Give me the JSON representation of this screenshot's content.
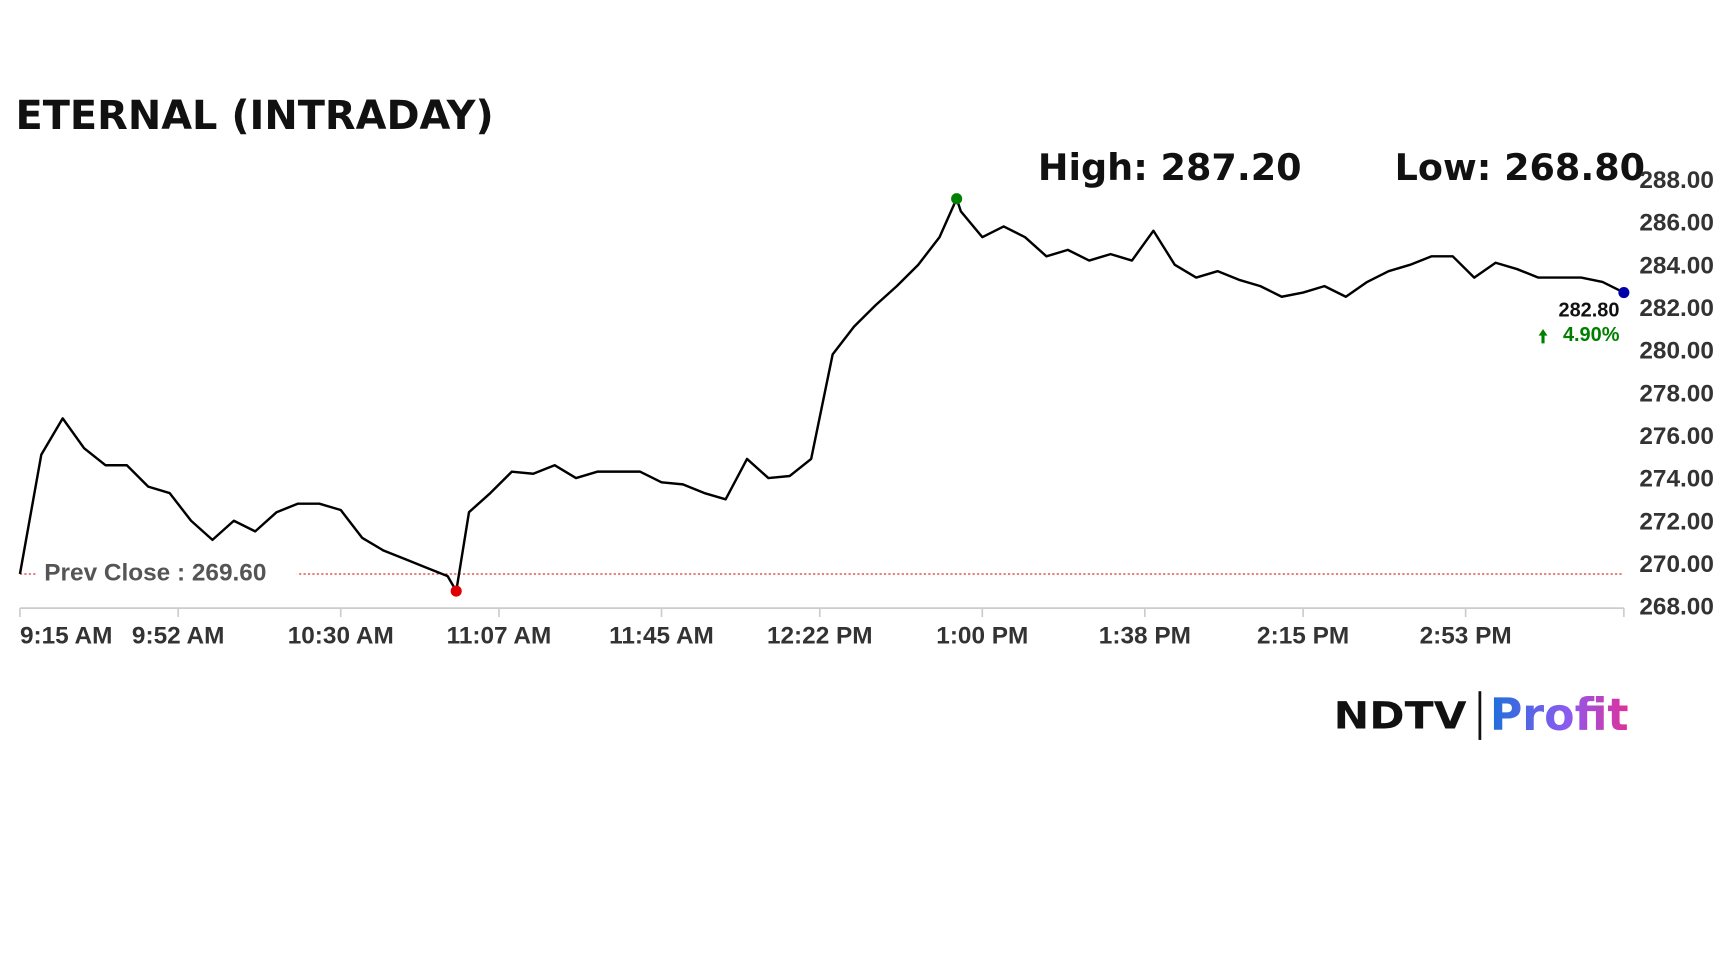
{
  "chart_data": {
    "type": "line",
    "title": "ETERNAL (INTRADAY)",
    "x": [
      "9:15 AM",
      "9:20 AM",
      "9:25 AM",
      "9:30 AM",
      "9:35 AM",
      "9:40 AM",
      "9:45 AM",
      "9:50 AM",
      "9:55 AM",
      "10:00 AM",
      "10:05 AM",
      "10:10 AM",
      "10:15 AM",
      "10:20 AM",
      "10:25 AM",
      "10:30 AM",
      "10:35 AM",
      "10:40 AM",
      "10:45 AM",
      "10:50 AM",
      "10:55 AM",
      "10:57 AM",
      "11:00 AM",
      "11:05 AM",
      "11:10 AM",
      "11:15 AM",
      "11:20 AM",
      "11:25 AM",
      "11:30 AM",
      "11:35 AM",
      "11:40 AM",
      "11:45 AM",
      "11:50 AM",
      "11:55 AM",
      "12:00 PM",
      "12:05 PM",
      "12:10 PM",
      "12:15 PM",
      "12:20 PM",
      "12:25 PM",
      "12:30 PM",
      "12:35 PM",
      "12:40 PM",
      "12:45 PM",
      "12:50 PM",
      "12:54 PM",
      "12:55 PM",
      "1:00 PM",
      "1:05 PM",
      "1:10 PM",
      "1:15 PM",
      "1:20 PM",
      "1:25 PM",
      "1:30 PM",
      "1:35 PM",
      "1:40 PM",
      "1:45 PM",
      "1:50 PM",
      "1:55 PM",
      "2:00 PM",
      "2:05 PM",
      "2:10 PM",
      "2:15 PM",
      "2:20 PM",
      "2:25 PM",
      "2:30 PM",
      "2:35 PM",
      "2:40 PM",
      "2:45 PM",
      "2:50 PM",
      "2:55 PM",
      "3:00 PM",
      "3:05 PM",
      "3:10 PM",
      "3:15 PM",
      "3:20 PM",
      "3:25 PM",
      "3:30 PM"
    ],
    "values": [
      269.6,
      275.2,
      276.9,
      275.5,
      274.7,
      274.7,
      273.7,
      273.4,
      272.1,
      271.2,
      272.1,
      271.6,
      272.5,
      272.9,
      272.9,
      272.6,
      271.3,
      270.7,
      270.3,
      269.9,
      269.5,
      268.8,
      272.5,
      273.4,
      274.4,
      274.3,
      274.7,
      274.1,
      274.4,
      274.4,
      274.4,
      273.9,
      273.8,
      273.4,
      273.1,
      275.0,
      274.1,
      274.2,
      275.0,
      279.9,
      281.2,
      282.2,
      283.1,
      284.1,
      285.4,
      287.2,
      286.6,
      285.4,
      285.9,
      285.4,
      284.5,
      284.8,
      284.3,
      284.6,
      284.3,
      285.7,
      284.1,
      283.5,
      283.8,
      283.4,
      283.1,
      282.6,
      282.8,
      283.1,
      282.6,
      283.3,
      283.8,
      284.1,
      284.5,
      284.5,
      283.5,
      284.2,
      283.9,
      283.5,
      283.5,
      283.5,
      283.3,
      282.8
    ],
    "color": "#000000",
    "xlim": [
      "9:15 AM",
      "3:30 PM"
    ],
    "xticks": [
      "9:15 AM",
      "9:52 AM",
      "10:30 AM",
      "11:07 AM",
      "11:45 AM",
      "12:22 PM",
      "1:00 PM",
      "1:38 PM",
      "2:15 PM",
      "2:53 PM"
    ],
    "ylim": [
      268,
      288
    ],
    "yticks": [
      {
        "value": 268,
        "label": "268.00"
      },
      {
        "value": 270,
        "label": "270.00"
      },
      {
        "value": 272,
        "label": "272.00"
      },
      {
        "value": 274,
        "label": "274.00"
      },
      {
        "value": 276,
        "label": "276.00"
      },
      {
        "value": 278,
        "label": "278.00"
      },
      {
        "value": 280,
        "label": "280.00"
      },
      {
        "value": 282,
        "label": "282.00"
      },
      {
        "value": 284,
        "label": "284.00"
      },
      {
        "value": 286,
        "label": "286.00"
      },
      {
        "value": 288,
        "label": "288.00"
      }
    ],
    "high": {
      "value": 287.2,
      "label": "High: 287.20",
      "time": "12:54 PM",
      "color": "#008000"
    },
    "low": {
      "value": 268.8,
      "label": "Low: 268.80",
      "time": "10:57 AM",
      "color": "#e00000"
    },
    "prev_close": {
      "value": 269.6,
      "label": "Prev Close : 269.60",
      "color": "#cc0000"
    },
    "last": {
      "label": "282.80",
      "change_label": "4.90%",
      "change_color": "#008000",
      "color": "#0000aa"
    },
    "logo": {
      "brand": "NDTV",
      "product": "Profit"
    }
  }
}
